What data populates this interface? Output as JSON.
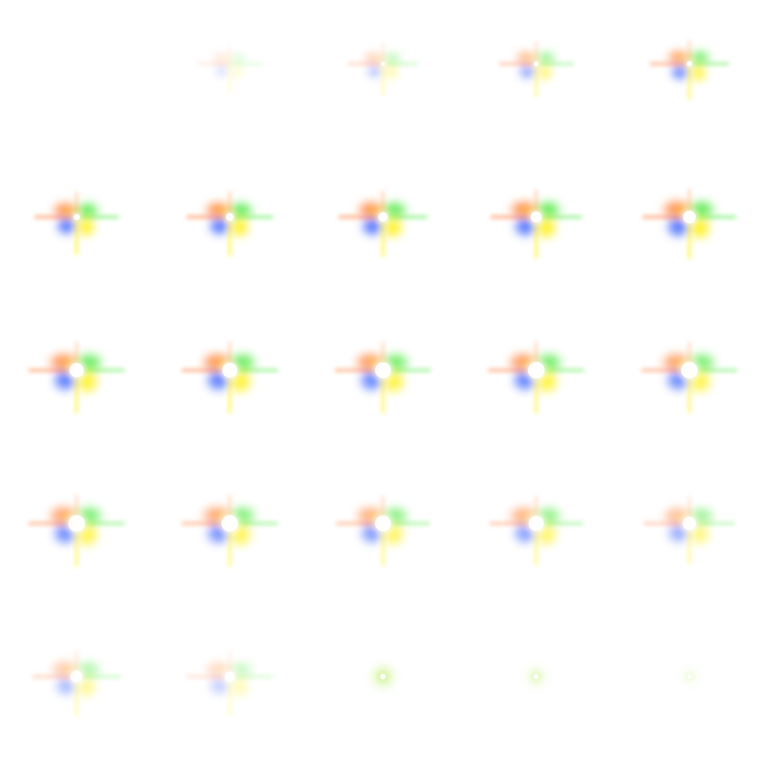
{
  "sprite_sheet": {
    "columns": 5,
    "rows": 5,
    "frame_count": 25,
    "background": "#ffffff",
    "palette": {
      "orange": "#ff6a1a",
      "green": "#46e838",
      "blue": "#2f5bff",
      "yellow": "#fff000",
      "core": "#ffffff",
      "warm_highlight": "#ffd24a",
      "late_glow": "#b8f060"
    },
    "frames": [
      {
        "intensity": 0.0,
        "core": 0.0,
        "spread": 0.3,
        "style": "empty"
      },
      {
        "intensity": 0.25,
        "core": 0.0,
        "spread": 0.35,
        "style": "burst"
      },
      {
        "intensity": 0.45,
        "core": 0.05,
        "spread": 0.45,
        "style": "burst"
      },
      {
        "intensity": 0.65,
        "core": 0.1,
        "spread": 0.55,
        "style": "burst"
      },
      {
        "intensity": 0.85,
        "core": 0.15,
        "spread": 0.65,
        "style": "burst"
      },
      {
        "intensity": 1.0,
        "core": 0.2,
        "spread": 0.75,
        "style": "burst"
      },
      {
        "intensity": 1.0,
        "core": 0.3,
        "spread": 0.8,
        "style": "burst"
      },
      {
        "intensity": 1.0,
        "core": 0.4,
        "spread": 0.85,
        "style": "burst"
      },
      {
        "intensity": 1.0,
        "core": 0.5,
        "spread": 0.9,
        "style": "burst"
      },
      {
        "intensity": 1.0,
        "core": 0.6,
        "spread": 0.95,
        "style": "burst"
      },
      {
        "intensity": 0.95,
        "core": 0.7,
        "spread": 1.0,
        "style": "burst"
      },
      {
        "intensity": 0.95,
        "core": 0.75,
        "spread": 1.0,
        "style": "burst"
      },
      {
        "intensity": 0.9,
        "core": 0.8,
        "spread": 1.0,
        "style": "burst"
      },
      {
        "intensity": 0.9,
        "core": 0.85,
        "spread": 1.0,
        "style": "burst"
      },
      {
        "intensity": 0.85,
        "core": 0.85,
        "spread": 1.0,
        "style": "burst"
      },
      {
        "intensity": 0.85,
        "core": 0.85,
        "spread": 1.0,
        "style": "burst"
      },
      {
        "intensity": 0.8,
        "core": 0.85,
        "spread": 1.0,
        "style": "burst"
      },
      {
        "intensity": 0.75,
        "core": 0.8,
        "spread": 0.95,
        "style": "burst"
      },
      {
        "intensity": 0.7,
        "core": 0.75,
        "spread": 0.95,
        "style": "burst"
      },
      {
        "intensity": 0.6,
        "core": 0.65,
        "spread": 0.9,
        "style": "burst"
      },
      {
        "intensity": 0.5,
        "core": 0.55,
        "spread": 0.85,
        "style": "burst"
      },
      {
        "intensity": 0.35,
        "core": 0.45,
        "spread": 0.8,
        "style": "fade"
      },
      {
        "intensity": 0.3,
        "core": 0.4,
        "spread": 0.4,
        "style": "glow"
      },
      {
        "intensity": 0.2,
        "core": 0.3,
        "spread": 0.3,
        "style": "glow"
      },
      {
        "intensity": 0.12,
        "core": 0.2,
        "spread": 0.2,
        "style": "glow"
      }
    ]
  }
}
